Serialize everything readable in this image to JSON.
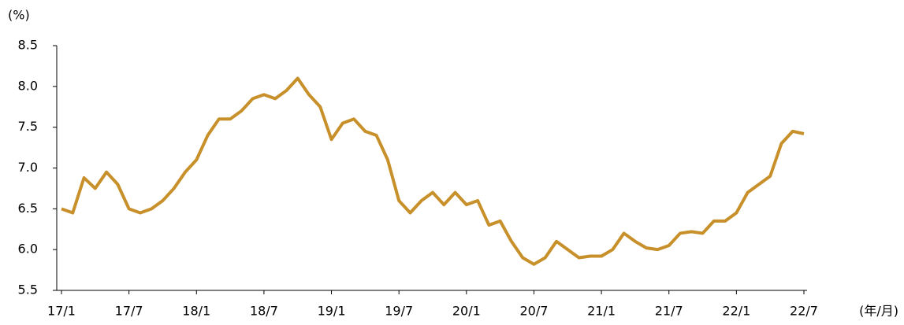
{
  "chart_data": {
    "type": "line",
    "y_unit_label": "(%)",
    "x_unit_label": "(年/月)",
    "x": [
      "2017-01",
      "2017-02",
      "2017-03",
      "2017-04",
      "2017-05",
      "2017-06",
      "2017-07",
      "2017-08",
      "2017-09",
      "2017-10",
      "2017-11",
      "2017-12",
      "2018-01",
      "2018-02",
      "2018-03",
      "2018-04",
      "2018-05",
      "2018-06",
      "2018-07",
      "2018-08",
      "2018-09",
      "2018-10",
      "2018-11",
      "2018-12",
      "2019-01",
      "2019-02",
      "2019-03",
      "2019-04",
      "2019-05",
      "2019-06",
      "2019-07",
      "2019-08",
      "2019-09",
      "2019-10",
      "2019-11",
      "2019-12",
      "2020-01",
      "2020-02",
      "2020-03",
      "2020-04",
      "2020-05",
      "2020-06",
      "2020-07",
      "2020-08",
      "2020-09",
      "2020-10",
      "2020-11",
      "2020-12",
      "2021-01",
      "2021-02",
      "2021-03",
      "2021-04",
      "2021-05",
      "2021-06",
      "2021-07",
      "2021-08",
      "2021-09",
      "2021-10",
      "2021-11",
      "2021-12",
      "2022-01",
      "2022-02",
      "2022-03",
      "2022-04",
      "2022-05",
      "2022-06",
      "2022-07"
    ],
    "series": [
      {
        "color": "#c8902a",
        "values": [
          6.5,
          6.45,
          6.88,
          6.75,
          6.95,
          6.8,
          6.5,
          6.45,
          6.5,
          6.6,
          6.75,
          6.95,
          7.1,
          7.4,
          7.6,
          7.6,
          7.7,
          7.85,
          7.9,
          7.85,
          7.95,
          8.1,
          7.9,
          7.75,
          7.35,
          7.55,
          7.6,
          7.45,
          7.4,
          7.1,
          6.6,
          6.45,
          6.6,
          6.7,
          6.55,
          6.7,
          6.55,
          6.6,
          6.3,
          6.35,
          6.1,
          5.9,
          5.82,
          5.9,
          6.1,
          6.0,
          5.9,
          5.92,
          5.92,
          6.0,
          6.2,
          6.1,
          6.02,
          6.0,
          6.05,
          6.2,
          6.22,
          6.2,
          6.35,
          6.35,
          6.45,
          6.7,
          6.8,
          6.9,
          7.3,
          7.45,
          7.42
        ]
      }
    ],
    "ylim": [
      5.5,
      8.5
    ],
    "yticks": [
      {
        "value": 5.5,
        "label": "5.5"
      },
      {
        "value": 6,
        "label": "6.0"
      },
      {
        "value": 6.5,
        "label": "6.5"
      },
      {
        "value": 7,
        "label": "7.0"
      },
      {
        "value": 7.5,
        "label": "7.5"
      },
      {
        "value": 8,
        "label": "8.0"
      },
      {
        "value": 8.5,
        "label": "8.5"
      }
    ],
    "xticks": [
      {
        "value": "2017-01",
        "label": "17/1"
      },
      {
        "value": "2017-07",
        "label": "17/7"
      },
      {
        "value": "2018-01",
        "label": "18/1"
      },
      {
        "value": "2018-07",
        "label": "18/7"
      },
      {
        "value": "2019-01",
        "label": "19/1"
      },
      {
        "value": "2019-07",
        "label": "19/7"
      },
      {
        "value": "2020-01",
        "label": "20/1"
      },
      {
        "value": "2020-07",
        "label": "20/7"
      },
      {
        "value": "2021-01",
        "label": "21/1"
      },
      {
        "value": "2021-07",
        "label": "21/7"
      },
      {
        "value": "2022-01",
        "label": "22/1"
      },
      {
        "value": "2022-07",
        "label": "22/7"
      }
    ],
    "grid": false
  }
}
